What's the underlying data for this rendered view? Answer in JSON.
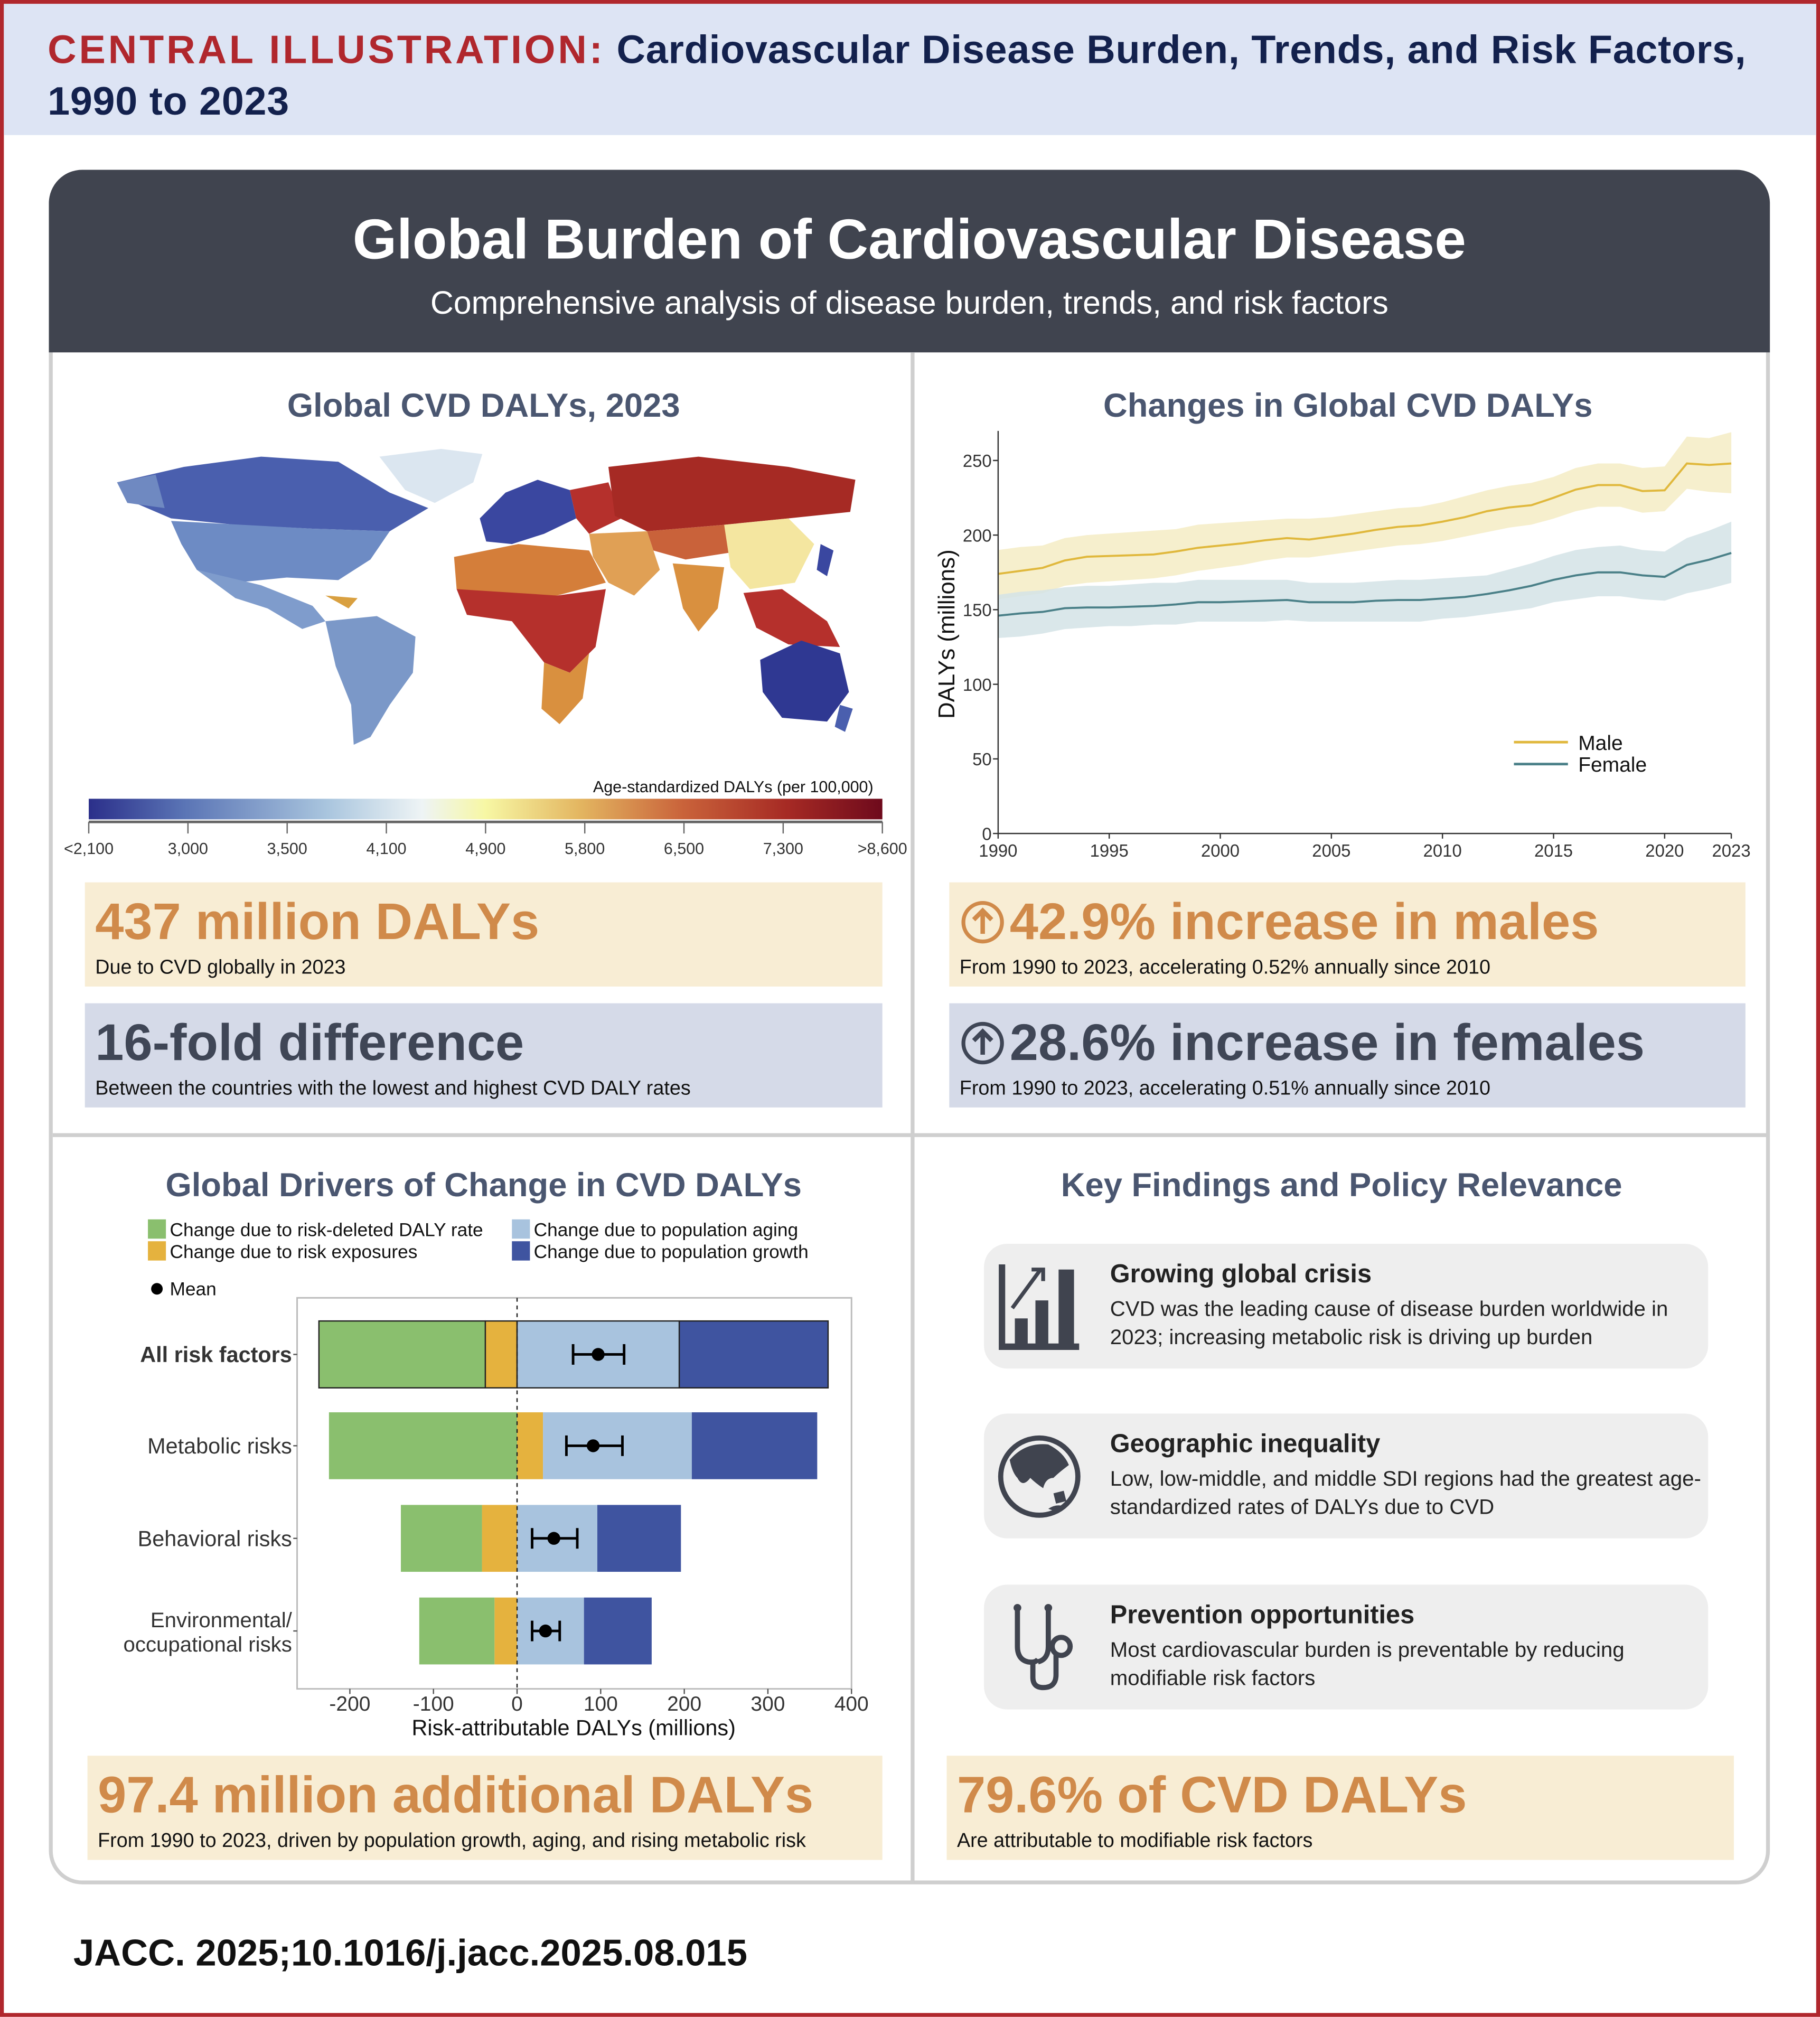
{
  "header": {
    "label": "CENTRAL ILLUSTRATION:",
    "title": "Cardiovascular Disease Burden, Trends, and Risk Factors, 1990 to 2023"
  },
  "banner": {
    "title": "Global Burden of Cardiovascular Disease",
    "subtitle": "Comprehensive analysis of disease burden, trends, and risk factors"
  },
  "map_panel": {
    "title": "Global CVD DALYs, 2023",
    "legend_title": "Age-standardized DALYs (per 100,000)",
    "legend_ticks": [
      "<2,100",
      "3,000",
      "3,500",
      "4,100",
      "4,900",
      "5,800",
      "6,500",
      "7,300",
      ">8,600"
    ],
    "legend_colors": [
      "#2b2f8a",
      "#5a74b5",
      "#a9c5de",
      "#eef4f5",
      "#f7f7a4",
      "#e3b560",
      "#c9623a",
      "#a62a24",
      "#6e0a1c"
    ]
  },
  "stats": {
    "dalys": {
      "value": "437 million DALYs",
      "caption": "Due to CVD globally  in 2023"
    },
    "fold": {
      "value": "16-fold difference",
      "caption": "Between the countries with the lowest and highest CVD DALY rates"
    },
    "males": {
      "value": "42.9% increase in males",
      "caption": "From 1990 to 2023, accelerating  0.52% annually since 2010",
      "icon": "arrow-up-circle-icon"
    },
    "females": {
      "value": "28.6% increase in females",
      "caption": "From 1990 to 2023, accelerating 0.51% annually since 2010",
      "icon": "arrow-up-circle-icon"
    },
    "additional": {
      "value": "97.4 million additional DALYs",
      "caption": "From 1990 to 2023, driven by population growth, aging, and rising metabolic risk"
    },
    "attributable": {
      "value": "79.6% of CVD DALYs",
      "caption": "Are attributable to modifiable risk factors"
    }
  },
  "key_findings": {
    "title": "Key Findings and Policy Relevance",
    "items": [
      {
        "icon": "growth-chart-icon",
        "title": "Growing global crisis",
        "body": "CVD was the leading cause of disease burden worldwide in 2023; increasing metabolic risk is driving up burden"
      },
      {
        "icon": "globe-icon",
        "title": "Geographic inequality",
        "body": "Low, low-middle, and middle SDI regions had the greatest age-standardized rates of DALYs due to CVD"
      },
      {
        "icon": "stethoscope-icon",
        "title": "Prevention opportunities",
        "body": "Most cardiovascular burden is preventable by reducing modifiable risk factors"
      }
    ]
  },
  "footer": {
    "citation": "JACC. 2025;10.1016/j.jacc.2025.08.015"
  },
  "chart_data": [
    {
      "type": "line",
      "title": "Changes in Global CVD DALYs",
      "xlabel": "",
      "ylabel": "DALYs (millions)",
      "xlim": [
        1990,
        2023
      ],
      "ylim": [
        0,
        270
      ],
      "xticks": [
        "1990",
        "1995",
        "2000",
        "2005",
        "2010",
        "2015",
        "2020",
        "2023"
      ],
      "yticks": [
        "0",
        "50",
        "100",
        "150",
        "200",
        "250"
      ],
      "legend_position": "bottom-right",
      "grid": false,
      "x": [
        1990,
        1991,
        1992,
        1993,
        1994,
        1995,
        1996,
        1997,
        1998,
        1999,
        2000,
        2001,
        2002,
        2003,
        2004,
        2005,
        2006,
        2007,
        2008,
        2009,
        2010,
        2011,
        2012,
        2013,
        2014,
        2015,
        2016,
        2017,
        2018,
        2019,
        2020,
        2021,
        2022,
        2023
      ],
      "series": [
        {
          "name": "Male",
          "color": "#e0b83c",
          "band_color": "#f5ecc4",
          "values": [
            174,
            176,
            178,
            183,
            185.5,
            186,
            186.5,
            187,
            189,
            191.5,
            193,
            194.5,
            196.5,
            198,
            197,
            199,
            201,
            203.5,
            205.5,
            206.5,
            209,
            212,
            216,
            218.5,
            220,
            225,
            230.5,
            233.5,
            233.5,
            229.5,
            230,
            248,
            247,
            248
          ],
          "upper": [
            190,
            192,
            193,
            198,
            200,
            201,
            202,
            203,
            204,
            207,
            208,
            209,
            210,
            211,
            211,
            212,
            214,
            216,
            218,
            219,
            222,
            226,
            230,
            233,
            235,
            239,
            245,
            248,
            248,
            245,
            246,
            266,
            265,
            269
          ],
          "lower": [
            157,
            159,
            161,
            166,
            168,
            169,
            170,
            171,
            173,
            176,
            178,
            180,
            183,
            185,
            185,
            187,
            189,
            191,
            193,
            194,
            196,
            199,
            202,
            205,
            207,
            211,
            216,
            219,
            219,
            215,
            216,
            231,
            229,
            228
          ]
        },
        {
          "name": "Female",
          "color": "#4a8088",
          "band_color": "#d4e3e6",
          "values": [
            146,
            147.5,
            148.5,
            151,
            151.5,
            151.5,
            152,
            152.5,
            153.5,
            155,
            155,
            155.5,
            156,
            156.5,
            155,
            155,
            155,
            156,
            156.5,
            156.5,
            157.5,
            158.5,
            160.5,
            163,
            166,
            170,
            173,
            175,
            175,
            173,
            172,
            180,
            183.5,
            188
          ],
          "upper": [
            160,
            162,
            163,
            165,
            166,
            166,
            167,
            168,
            168,
            170,
            170,
            170,
            170,
            170,
            168,
            168,
            168,
            169,
            170,
            170,
            171,
            172,
            173,
            177,
            181,
            186,
            190,
            192,
            193,
            190,
            189,
            198,
            203,
            209
          ],
          "lower": [
            131,
            132,
            134,
            137,
            138,
            139,
            139,
            140,
            140,
            142,
            142,
            142,
            142,
            143,
            142,
            142,
            142,
            142,
            142,
            142,
            144,
            145,
            147,
            149,
            151,
            155,
            157,
            159,
            159,
            157,
            156,
            161,
            164,
            168
          ]
        }
      ]
    },
    {
      "type": "bar",
      "orientation": "horizontal-stacked",
      "title": "Global Drivers of Change in CVD DALYs",
      "xlabel": "Risk-attributable DALYs (millions)",
      "xlim": [
        -265,
        400
      ],
      "xticks": [
        "-200",
        "-100",
        "0",
        "100",
        "200",
        "300",
        "400"
      ],
      "legend_position": "top",
      "categories": [
        "All risk factors",
        "Metabolic risks",
        "Behavioral risks",
        "Environmental/\noccupational risks"
      ],
      "series": [
        {
          "name": "Change due to risk-deleted DALY rate",
          "color": "#8abf6e",
          "values": [
            -199,
            -225,
            -97,
            -90
          ]
        },
        {
          "name": "Change due to risk exposures",
          "color": "#e5b23e",
          "values": [
            -38,
            31,
            -42,
            -27
          ]
        },
        {
          "name": "Change due to population aging",
          "color": "#a8c3de",
          "values": [
            194,
            178,
            96,
            80
          ]
        },
        {
          "name": "Change due to population growth",
          "color": "#3f54a0",
          "values": [
            178,
            150,
            100,
            81
          ]
        }
      ],
      "mean": {
        "name": "Mean",
        "values": [
          97,
          91,
          44,
          34
        ],
        "lower": [
          67,
          59,
          18,
          18
        ],
        "upper": [
          128,
          126,
          72,
          51
        ]
      }
    }
  ]
}
